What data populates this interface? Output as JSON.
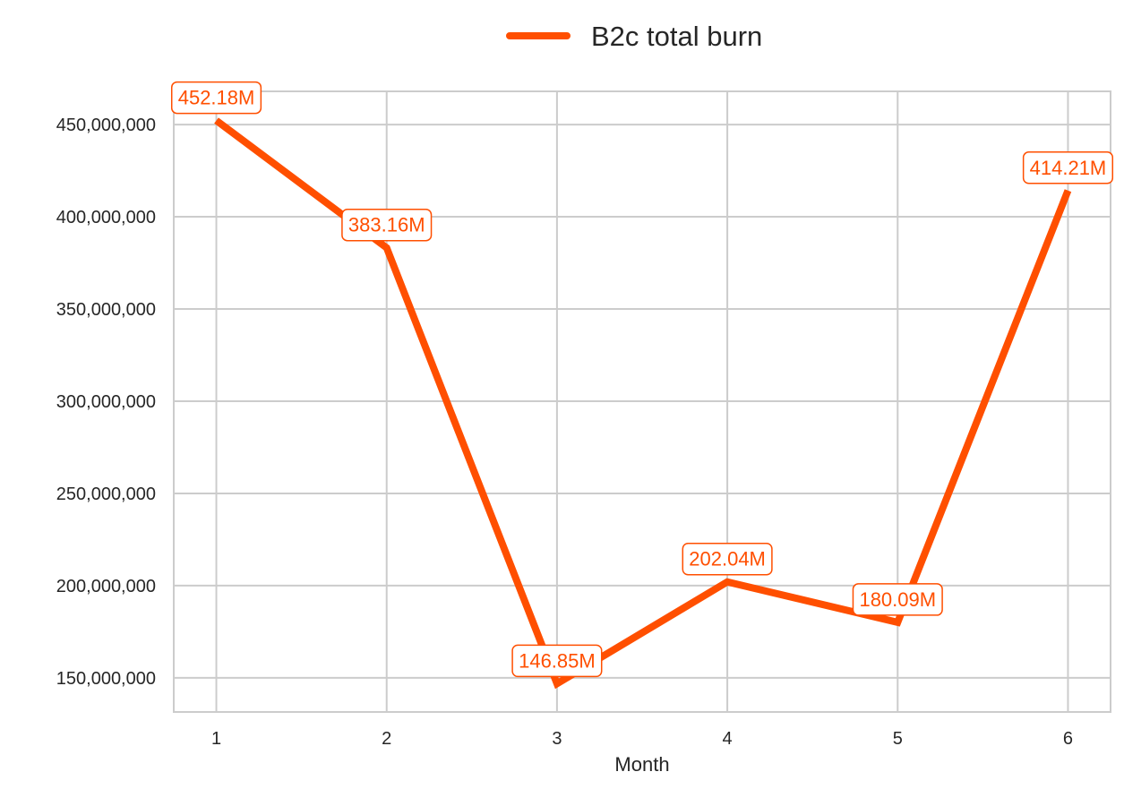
{
  "chart_data": {
    "type": "line",
    "title": "",
    "xlabel": "Month",
    "ylabel": "",
    "x": [
      1,
      2,
      3,
      4,
      5,
      6
    ],
    "x_ticks": [
      "1",
      "2",
      "3",
      "4",
      "5",
      "6"
    ],
    "y_ticks": [
      150000000,
      200000000,
      250000000,
      300000000,
      350000000,
      400000000,
      450000000
    ],
    "y_tick_labels": [
      "150,000,000",
      "200,000,000",
      "250,000,000",
      "300,000,000",
      "350,000,000",
      "400,000,000",
      "450,000,000"
    ],
    "ylim": [
      131500000,
      468000000
    ],
    "xlim": [
      0.75,
      6.25
    ],
    "grid": true,
    "legend_position": "top-center",
    "series": [
      {
        "name": "B2c total burn",
        "color": "#ff4f00",
        "values": [
          452180000,
          383160000,
          146850000,
          202040000,
          180090000,
          414210000
        ],
        "labels": [
          "452.18M",
          "383.16M",
          "146.85M",
          "202.04M",
          "180.09M",
          "414.21M"
        ]
      }
    ]
  }
}
